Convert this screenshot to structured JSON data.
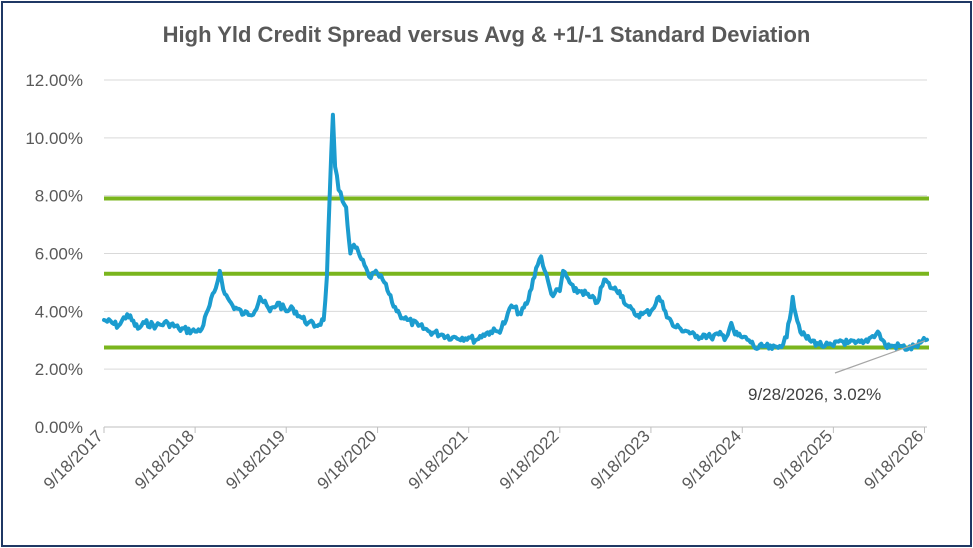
{
  "chart_data": {
    "type": "line",
    "title": "High Yld Credit Spread versus Avg & +1/-1 Standard Deviation",
    "xlabel": "",
    "ylabel": "",
    "x_ticks": [
      "9/18/2017",
      "9/18/2018",
      "9/18/2019",
      "9/18/2020",
      "9/18/2021",
      "9/18/2022",
      "9/18/2023",
      "9/18/2024",
      "9/18/2025",
      "9/18/2026"
    ],
    "y_ticks": [
      "0.00%",
      "2.00%",
      "4.00%",
      "6.00%",
      "8.00%",
      "10.00%",
      "12.00%"
    ],
    "xlim": [
      "2017-09-18",
      "2026-09-28"
    ],
    "ylim": [
      0,
      12
    ],
    "grid": "horizontal",
    "series": [
      {
        "color": "#1b9ccf",
        "points": [
          [
            "2017-09-18",
            3.7
          ],
          [
            "2017-11-15",
            3.5
          ],
          [
            "2017-12-20",
            3.9
          ],
          [
            "2018-02-01",
            3.4
          ],
          [
            "2018-03-01",
            3.6
          ],
          [
            "2018-04-15",
            3.5
          ],
          [
            "2018-06-01",
            3.6
          ],
          [
            "2018-07-15",
            3.4
          ],
          [
            "2018-09-18",
            3.3
          ],
          [
            "2018-10-15",
            3.4
          ],
          [
            "2018-11-15",
            4.2
          ],
          [
            "2018-12-10",
            4.8
          ],
          [
            "2018-12-26",
            5.4
          ],
          [
            "2019-01-15",
            4.6
          ],
          [
            "2019-02-15",
            4.2
          ],
          [
            "2019-04-01",
            3.9
          ],
          [
            "2019-05-15",
            4.0
          ],
          [
            "2019-06-05",
            4.5
          ],
          [
            "2019-07-15",
            4.0
          ],
          [
            "2019-08-15",
            4.3
          ],
          [
            "2019-09-18",
            4.0
          ],
          [
            "2019-10-15",
            4.1
          ],
          [
            "2019-11-15",
            3.8
          ],
          [
            "2019-12-15",
            3.6
          ],
          [
            "2020-01-15",
            3.5
          ],
          [
            "2020-02-15",
            3.7
          ],
          [
            "2020-02-28",
            5.2
          ],
          [
            "2020-03-10",
            8.0
          ],
          [
            "2020-03-23",
            10.8
          ],
          [
            "2020-04-01",
            9.0
          ],
          [
            "2020-04-15",
            8.2
          ],
          [
            "2020-05-01",
            7.8
          ],
          [
            "2020-05-15",
            7.6
          ],
          [
            "2020-06-01",
            6.0
          ],
          [
            "2020-06-15",
            6.3
          ],
          [
            "2020-07-15",
            5.8
          ],
          [
            "2020-08-15",
            5.2
          ],
          [
            "2020-09-18",
            5.3
          ],
          [
            "2020-10-15",
            5.0
          ],
          [
            "2020-11-15",
            4.3
          ],
          [
            "2020-12-15",
            3.9
          ],
          [
            "2021-01-15",
            3.7
          ],
          [
            "2021-03-01",
            3.5
          ],
          [
            "2021-04-15",
            3.3
          ],
          [
            "2021-06-01",
            3.2
          ],
          [
            "2021-07-15",
            3.1
          ],
          [
            "2021-09-18",
            3.1
          ],
          [
            "2021-10-15",
            3.0
          ],
          [
            "2021-11-15",
            3.2
          ],
          [
            "2021-12-15",
            3.3
          ],
          [
            "2022-01-15",
            3.3
          ],
          [
            "2022-02-15",
            3.7
          ],
          [
            "2022-03-08",
            4.2
          ],
          [
            "2022-04-15",
            3.9
          ],
          [
            "2022-05-15",
            4.4
          ],
          [
            "2022-06-15",
            5.5
          ],
          [
            "2022-07-05",
            5.9
          ],
          [
            "2022-07-20",
            5.4
          ],
          [
            "2022-08-15",
            4.6
          ],
          [
            "2022-09-18",
            4.7
          ],
          [
            "2022-10-01",
            5.4
          ],
          [
            "2022-10-15",
            5.2
          ],
          [
            "2022-11-15",
            4.7
          ],
          [
            "2022-12-15",
            4.7
          ],
          [
            "2023-01-15",
            4.5
          ],
          [
            "2023-02-15",
            4.3
          ],
          [
            "2023-03-15",
            5.1
          ],
          [
            "2023-04-15",
            4.8
          ],
          [
            "2023-05-15",
            4.7
          ],
          [
            "2023-06-15",
            4.2
          ],
          [
            "2023-07-15",
            3.9
          ],
          [
            "2023-08-15",
            3.9
          ],
          [
            "2023-09-18",
            4.0
          ],
          [
            "2023-10-20",
            4.5
          ],
          [
            "2023-11-15",
            4.0
          ],
          [
            "2023-12-15",
            3.5
          ],
          [
            "2024-01-15",
            3.4
          ],
          [
            "2024-02-15",
            3.3
          ],
          [
            "2024-03-15",
            3.1
          ],
          [
            "2024-04-15",
            3.2
          ],
          [
            "2024-05-15",
            3.1
          ],
          [
            "2024-06-15",
            3.2
          ],
          [
            "2024-07-15",
            3.1
          ],
          [
            "2024-08-05",
            3.6
          ],
          [
            "2024-08-20",
            3.2
          ],
          [
            "2024-09-18",
            3.1
          ],
          [
            "2024-10-15",
            3.0
          ],
          [
            "2024-11-15",
            2.7
          ],
          [
            "2024-12-15",
            2.8
          ],
          [
            "2025-01-15",
            2.7
          ],
          [
            "2025-02-15",
            2.8
          ],
          [
            "2025-03-15",
            3.1
          ],
          [
            "2025-04-08",
            4.5
          ],
          [
            "2025-04-20",
            3.9
          ],
          [
            "2025-05-15",
            3.2
          ],
          [
            "2025-06-15",
            3.0
          ],
          [
            "2025-07-15",
            2.9
          ],
          [
            "2025-08-15",
            2.8
          ],
          [
            "2025-09-18",
            2.8
          ],
          [
            "2025-10-15",
            3.0
          ],
          [
            "2025-11-15",
            2.9
          ],
          [
            "2025-12-15",
            2.9
          ],
          [
            "2026-01-15",
            2.9
          ],
          [
            "2026-02-15",
            3.1
          ],
          [
            "2026-03-15",
            3.3
          ],
          [
            "2026-04-15",
            2.8
          ],
          [
            "2026-05-15",
            2.8
          ],
          [
            "2026-06-15",
            2.8
          ],
          [
            "2026-07-15",
            2.7
          ],
          [
            "2026-08-15",
            2.8
          ],
          [
            "2026-09-28",
            3.02
          ]
        ]
      }
    ],
    "reference_lines": [
      {
        "value": 7.9,
        "color": "#7ab51d"
      },
      {
        "value": 5.3,
        "color": "#7ab51d"
      },
      {
        "value": 2.75,
        "color": "#7ab51d"
      }
    ],
    "annotation": {
      "text": "9/28/2026, 3.02%",
      "date": "2026-09-28",
      "value": 3.02
    }
  }
}
